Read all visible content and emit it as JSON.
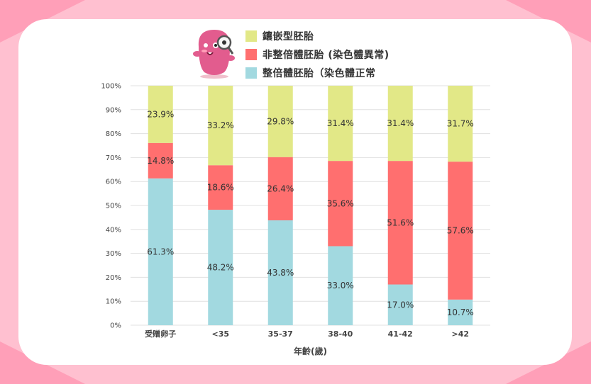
{
  "colors": {
    "frame": "#ffc0d0",
    "frame_dark": "#ff9fb8",
    "mosaic": "#e2e887",
    "aneuploid": "#ff6f6f",
    "euploid": "#a2d9e0",
    "grid": "#e0e0e0",
    "mascot_body": "#e25c8e"
  },
  "legend": {
    "items": [
      {
        "label": "鑲嵌型胚胎",
        "color": "#e2e887"
      },
      {
        "label": "非整倍體胚胎 (染色體異常)",
        "color": "#ff6f6f"
      },
      {
        "label": "整倍體胚胎（染色體正常",
        "color": "#a2d9e0"
      }
    ]
  },
  "mascot": {
    "icon": "magnifier-mascot-icon"
  },
  "chart_data": {
    "type": "bar",
    "stacked": true,
    "categories": [
      "受贈卵子",
      "<35",
      "35-37",
      "38-40",
      "41-42",
      ">42"
    ],
    "series": [
      {
        "name": "整倍體胚胎（染色體正常",
        "values": [
          61.3,
          48.2,
          43.8,
          33.0,
          17.0,
          10.7
        ],
        "labels": [
          "61.3%",
          "48.2%",
          "43.8%",
          "33.0%",
          "17.0%",
          "10.7%"
        ]
      },
      {
        "name": "非整倍體胚胎 (染色體異常)",
        "values": [
          14.8,
          18.6,
          26.4,
          35.6,
          51.6,
          57.6
        ],
        "labels": [
          "14.8%",
          "18.6%",
          "26.4%",
          "35.6%",
          "51.6%",
          "57.6%"
        ]
      },
      {
        "name": "鑲嵌型胚胎",
        "values": [
          23.9,
          33.2,
          29.8,
          31.4,
          31.4,
          31.7
        ],
        "labels": [
          "23.9%",
          "33.2%",
          "29.8%",
          "31.4%",
          "31.4%",
          "31.7%"
        ]
      }
    ],
    "xlabel": "年齡(歲)",
    "ylabel": "",
    "ylim": [
      0,
      100
    ],
    "yticks": [
      "0%",
      "10%",
      "20%",
      "30%",
      "40%",
      "50%",
      "60%",
      "70%",
      "80%",
      "90%",
      "100%"
    ],
    "grid": true,
    "legend_position": "top"
  }
}
